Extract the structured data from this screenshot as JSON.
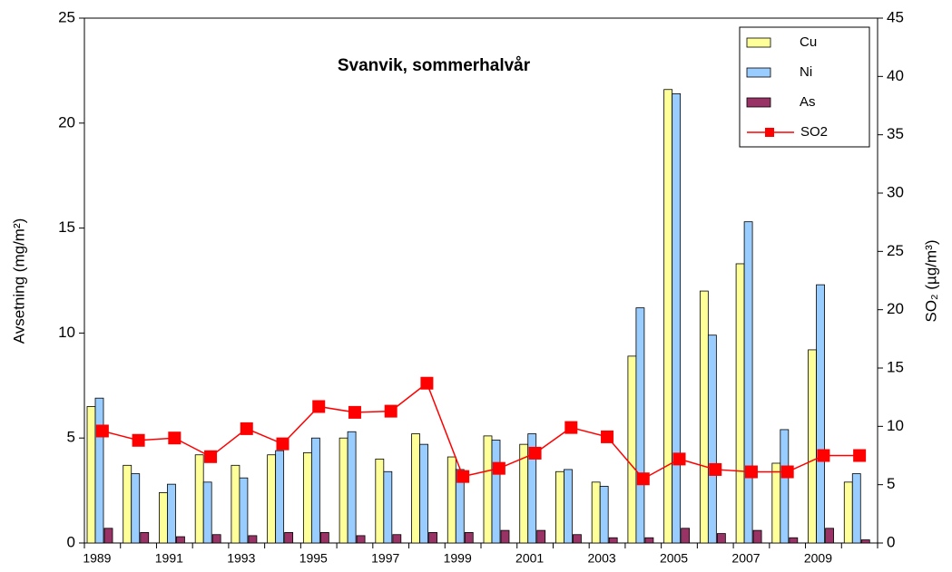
{
  "chart_data": {
    "type": "bar",
    "title": "Svanvik, sommerhalvår",
    "y_label": "Avsetning (mg/m²)",
    "y2_label": "SO₂ (µg/m³)",
    "categories": [
      "1989",
      null,
      "1991",
      null,
      "1993",
      null,
      "1995",
      null,
      "1997",
      null,
      "1999",
      null,
      "2001",
      null,
      "2003",
      null,
      "2005",
      null,
      "2007",
      null,
      "2009",
      null
    ],
    "series": [
      {
        "name": "Cu",
        "color": "#ffff99",
        "type": "bar",
        "values": [
          6.5,
          3.7,
          2.4,
          4.2,
          3.7,
          4.2,
          4.3,
          5.0,
          4.0,
          5.2,
          4.1,
          5.1,
          4.7,
          3.4,
          2.9,
          8.9,
          21.6,
          12.0,
          13.3,
          3.8,
          9.2,
          2.9
        ]
      },
      {
        "name": "Ni",
        "color": "#99ccff",
        "type": "bar",
        "values": [
          6.9,
          3.3,
          2.8,
          2.9,
          3.1,
          4.4,
          5.0,
          5.3,
          3.4,
          4.7,
          3.5,
          4.9,
          5.2,
          3.5,
          2.7,
          11.2,
          21.4,
          9.9,
          15.3,
          5.4,
          12.3,
          3.3
        ]
      },
      {
        "name": "As",
        "color": "#993366",
        "type": "bar",
        "values": [
          0.7,
          0.5,
          0.3,
          0.4,
          0.35,
          0.5,
          0.5,
          0.35,
          0.4,
          0.5,
          0.5,
          0.6,
          0.6,
          0.4,
          0.25,
          0.25,
          0.7,
          0.45,
          0.6,
          0.25,
          0.7,
          0.15
        ]
      },
      {
        "name": "SO2",
        "color": "#ff0000",
        "type": "line",
        "axis": "y2",
        "values": [
          9.6,
          8.8,
          9.0,
          7.4,
          9.8,
          8.5,
          11.7,
          11.2,
          11.3,
          13.7,
          5.7,
          6.4,
          7.7,
          9.9,
          9.1,
          5.5,
          7.2,
          6.3,
          6.1,
          6.1,
          7.5,
          7.5
        ]
      }
    ],
    "ylim": [
      0,
      25
    ],
    "yticks": [
      0,
      5,
      10,
      15,
      20,
      25
    ],
    "y2lim": [
      0,
      45
    ],
    "y2ticks": [
      0,
      5,
      10,
      15,
      20,
      25,
      30,
      35,
      40,
      45
    ],
    "legend": "upper right"
  }
}
